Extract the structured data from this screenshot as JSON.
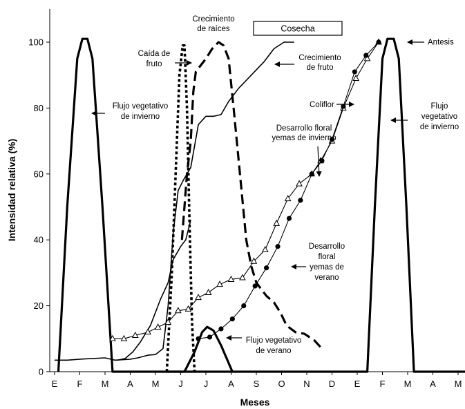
{
  "chart_data": {
    "type": "line",
    "title": "",
    "xlabel": "Meses",
    "ylabel": "Intensidad relativa (%)",
    "ylim": [
      0,
      110
    ],
    "yticks": [
      "0",
      "20",
      "40",
      "60",
      "80",
      "100"
    ],
    "xlim": [
      0,
      25
    ],
    "xticks": [
      "E",
      "F",
      "M",
      "A",
      "M",
      "J",
      "J",
      "A",
      "S",
      "O",
      "N",
      "D",
      "E",
      "F",
      "M",
      "A",
      "M"
    ],
    "legend": "none",
    "grid": false,
    "series": [
      {
        "style": "thick-solid",
        "points": [
          [
            0.15,
            0
          ],
          [
            0.5,
            50
          ],
          [
            0.9,
            95
          ],
          [
            1.1,
            101
          ],
          [
            1.3,
            101
          ],
          [
            1.5,
            95
          ],
          [
            1.9,
            50
          ],
          [
            2.3,
            0
          ],
          [
            2.5,
            0
          ],
          [
            12.0,
            0
          ],
          [
            12.4,
            0
          ],
          [
            12.7,
            50
          ],
          [
            13.0,
            95
          ],
          [
            13.2,
            101
          ],
          [
            13.45,
            101
          ],
          [
            13.65,
            95
          ],
          [
            13.95,
            50
          ],
          [
            14.25,
            0
          ],
          [
            25.0,
            0
          ]
        ]
      },
      {
        "style": "thick-solid",
        "points": [
          [
            4.5,
            0
          ],
          [
            4.85,
            0
          ],
          [
            5.15,
            0
          ],
          [
            5.55,
            6
          ],
          [
            5.85,
            12
          ],
          [
            6.05,
            13.6
          ],
          [
            6.3,
            12.5
          ],
          [
            6.6,
            8
          ],
          [
            7.05,
            0
          ]
        ]
      },
      {
        "style": "thin-solid",
        "points": [
          [
            0,
            3.5
          ],
          [
            0.5,
            3.5
          ],
          [
            1.0,
            3.8
          ],
          [
            1.5,
            4
          ],
          [
            2.0,
            4.2
          ],
          [
            2.4,
            3.5
          ],
          [
            3.0,
            3.8
          ],
          [
            3.3,
            4.2
          ],
          [
            3.7,
            5
          ],
          [
            4.0,
            5.2
          ],
          [
            4.3,
            7
          ],
          [
            4.5,
            20
          ],
          [
            4.7,
            42
          ],
          [
            4.9,
            55
          ],
          [
            5.1,
            58
          ],
          [
            5.25,
            60
          ],
          [
            5.4,
            62
          ],
          [
            5.7,
            75
          ],
          [
            6.0,
            77.5
          ],
          [
            6.3,
            77.5
          ],
          [
            6.6,
            78
          ],
          [
            6.9,
            82
          ],
          [
            7.3,
            86
          ],
          [
            7.8,
            90
          ],
          [
            8.3,
            94
          ],
          [
            8.7,
            98
          ],
          [
            9.1,
            100
          ],
          [
            9.5,
            100
          ]
        ]
      },
      {
        "style": "thin-solid",
        "points": [
          [
            2.5,
            3.5
          ],
          [
            2.8,
            4
          ],
          [
            3.1,
            6
          ],
          [
            3.4,
            9
          ],
          [
            3.8,
            14
          ],
          [
            4.2,
            22
          ],
          [
            4.5,
            27
          ],
          [
            4.7,
            34
          ],
          [
            5.0,
            38
          ],
          [
            5.2,
            40
          ],
          [
            5.4,
            46
          ]
        ]
      },
      {
        "style": "thick-dashed",
        "points": [
          [
            5.05,
            40
          ],
          [
            5.25,
            60
          ],
          [
            5.4,
            70
          ],
          [
            5.5,
            85
          ],
          [
            5.6,
            91
          ],
          [
            5.8,
            93
          ],
          [
            6.0,
            95
          ],
          [
            6.25,
            98
          ],
          [
            6.5,
            100
          ],
          [
            6.7,
            99
          ],
          [
            6.9,
            95
          ],
          [
            7.1,
            80
          ],
          [
            7.35,
            60
          ],
          [
            7.6,
            40
          ],
          [
            7.8,
            32
          ],
          [
            8.0,
            27
          ],
          [
            8.2,
            25
          ],
          [
            8.4,
            23
          ],
          [
            8.7,
            21
          ],
          [
            8.95,
            18
          ],
          [
            9.2,
            14
          ],
          [
            9.55,
            12
          ],
          [
            9.9,
            11.5
          ],
          [
            10.3,
            9.5
          ],
          [
            10.6,
            7
          ]
        ]
      },
      {
        "style": "thick-dotted",
        "points": [
          [
            4.45,
            0
          ],
          [
            4.65,
            30
          ],
          [
            4.8,
            60
          ],
          [
            4.95,
            90
          ],
          [
            5.08,
            99
          ],
          [
            5.15,
            99
          ],
          [
            5.25,
            80
          ],
          [
            5.35,
            45
          ],
          [
            5.45,
            15
          ],
          [
            5.55,
            0
          ]
        ]
      },
      {
        "style": "thin-triangles",
        "points": [
          [
            2.3,
            10
          ],
          [
            2.75,
            10
          ],
          [
            3.2,
            11
          ],
          [
            3.7,
            12
          ],
          [
            4.1,
            13.5
          ],
          [
            4.5,
            15
          ],
          [
            4.9,
            18.5
          ],
          [
            5.3,
            19
          ],
          [
            5.7,
            22.5
          ],
          [
            6.1,
            24
          ],
          [
            6.55,
            26.5
          ],
          [
            7.0,
            28
          ],
          [
            7.45,
            28.5
          ],
          [
            7.9,
            33.5
          ],
          [
            8.35,
            37
          ],
          [
            8.8,
            45
          ],
          [
            9.25,
            52.5
          ],
          [
            9.7,
            57
          ],
          [
            10.2,
            60
          ],
          [
            10.55,
            64
          ],
          [
            11.0,
            70
          ],
          [
            11.45,
            80
          ],
          [
            11.95,
            89
          ],
          [
            12.4,
            95
          ],
          [
            12.85,
            100
          ]
        ]
      },
      {
        "style": "thin-circles",
        "points": [
          [
            5.7,
            10
          ],
          [
            6.15,
            10.5
          ],
          [
            6.6,
            13
          ],
          [
            7.05,
            16
          ],
          [
            7.5,
            20
          ],
          [
            7.95,
            26
          ],
          [
            8.4,
            31.5
          ],
          [
            8.85,
            38
          ],
          [
            9.3,
            46.5
          ],
          [
            9.75,
            52
          ],
          [
            10.2,
            60
          ],
          [
            10.6,
            64
          ],
          [
            11.0,
            70.5
          ],
          [
            11.45,
            80.5
          ],
          [
            11.9,
            91
          ],
          [
            12.35,
            96
          ],
          [
            12.85,
            100
          ]
        ]
      }
    ],
    "annotations": {
      "crecimiento_raices": [
        "Crecimiento",
        "de raíces"
      ],
      "cosecha": "Cosecha",
      "caida_fruto": [
        "Caída de",
        "fruto"
      ],
      "flujo_invierno_1": [
        "Flujo vegetativo",
        "de invierno"
      ],
      "crecimiento_fruto": [
        "Crecimiento",
        "de fruto"
      ],
      "antesis": "Antesis",
      "coliflor": "Coliflor",
      "desarrollo_invierno": [
        "Desarrollo floral",
        "yemas de invierno"
      ],
      "flujo_invierno_2": [
        "Flujo",
        "vegetativo",
        "de invierno"
      ],
      "desarrollo_verano": [
        "Desarrollo",
        "floral",
        "yemas de",
        "verano"
      ],
      "flujo_verano": [
        "Flujo vegetativo",
        "de verano"
      ]
    }
  }
}
